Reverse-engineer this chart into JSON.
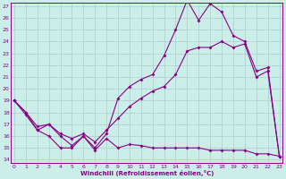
{
  "xlabel": "Windchill (Refroidissement éolien,°C)",
  "background_color": "#cceee8",
  "grid_color": "#aacccc",
  "line_color": "#880088",
  "xlim": [
    -0.3,
    23.3
  ],
  "ylim": [
    13.7,
    27.3
  ],
  "yticks": [
    14,
    15,
    16,
    17,
    18,
    19,
    20,
    21,
    22,
    23,
    24,
    25,
    26,
    27
  ],
  "xticks": [
    0,
    1,
    2,
    3,
    4,
    5,
    6,
    7,
    8,
    9,
    10,
    11,
    12,
    13,
    14,
    15,
    16,
    17,
    18,
    19,
    20,
    21,
    22,
    23
  ],
  "s1x": [
    0,
    1,
    2,
    3,
    4,
    5,
    6,
    7,
    8,
    9,
    10,
    11,
    12,
    13,
    14,
    15,
    16,
    17,
    18,
    19,
    20,
    21,
    22,
    23
  ],
  "s1y": [
    19.0,
    18.0,
    16.5,
    16.0,
    15.0,
    15.0,
    16.0,
    14.8,
    15.8,
    15.0,
    15.3,
    15.2,
    15.0,
    15.0,
    15.0,
    15.0,
    15.0,
    14.8,
    14.8,
    14.8,
    14.8,
    14.5,
    14.5,
    14.3
  ],
  "s2x": [
    0,
    1,
    2,
    3,
    4,
    5,
    6,
    7,
    8,
    9,
    10,
    11,
    12,
    13,
    14,
    15,
    16,
    17,
    18,
    19,
    20,
    21,
    22,
    23
  ],
  "s2y": [
    19.0,
    17.8,
    16.5,
    17.0,
    16.0,
    15.2,
    16.0,
    15.0,
    16.2,
    19.2,
    20.2,
    20.8,
    21.2,
    22.8,
    25.0,
    27.5,
    25.8,
    27.2,
    26.5,
    24.5,
    24.0,
    21.5,
    21.8,
    14.3
  ],
  "s3x": [
    0,
    1,
    2,
    3,
    4,
    5,
    6,
    7,
    8,
    9,
    10,
    11,
    12,
    13,
    14,
    15,
    16,
    17,
    18,
    19,
    20,
    21,
    22,
    23
  ],
  "s3y": [
    19.0,
    18.0,
    16.8,
    17.0,
    16.2,
    15.8,
    16.2,
    15.5,
    16.5,
    17.5,
    18.5,
    19.2,
    19.8,
    20.2,
    21.2,
    23.2,
    23.5,
    23.5,
    24.0,
    23.5,
    23.8,
    21.0,
    21.5,
    14.3
  ]
}
